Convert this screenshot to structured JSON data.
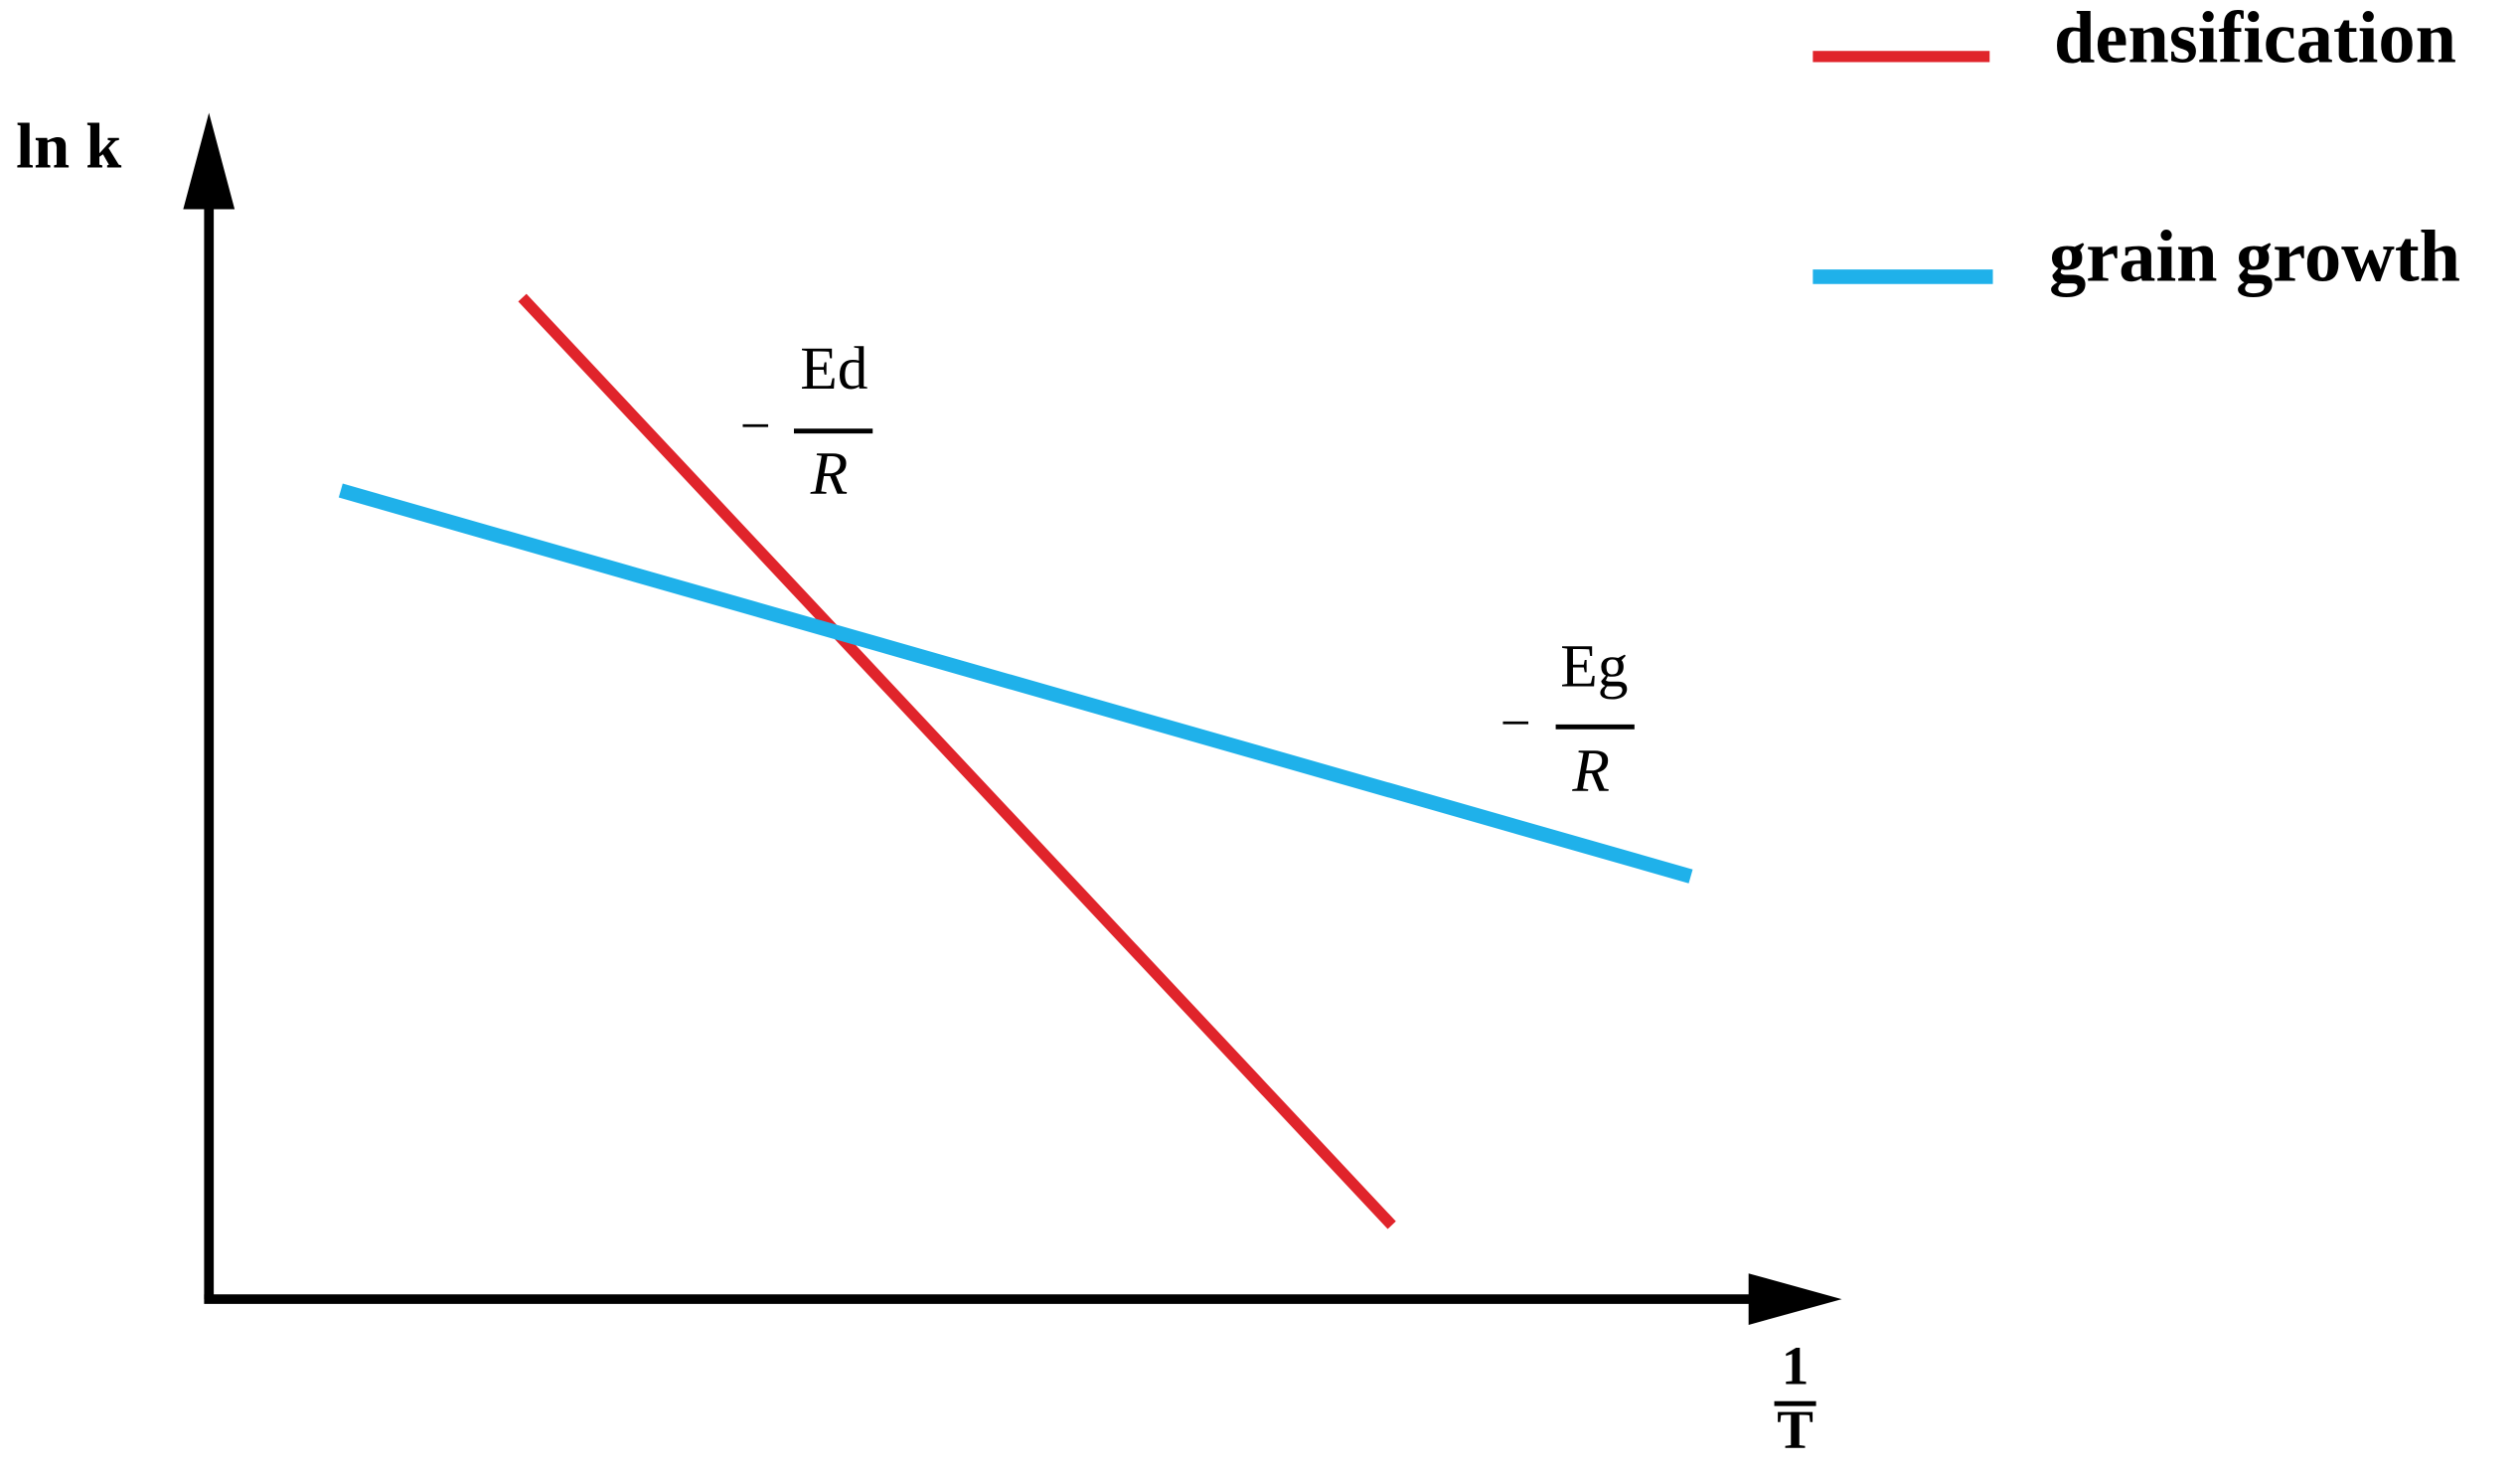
{
  "axes": {
    "y_label": "ln k",
    "x_label": {
      "numerator": "1",
      "denominator": "T"
    }
  },
  "legend": [
    {
      "label": "densification"
    },
    {
      "label": "grain growth"
    }
  ],
  "annotations": [
    {
      "sign": "−",
      "numerator": "Ed",
      "denominator": "R"
    },
    {
      "sign": "−",
      "numerator": "Eg",
      "denominator": "R"
    }
  ]
}
